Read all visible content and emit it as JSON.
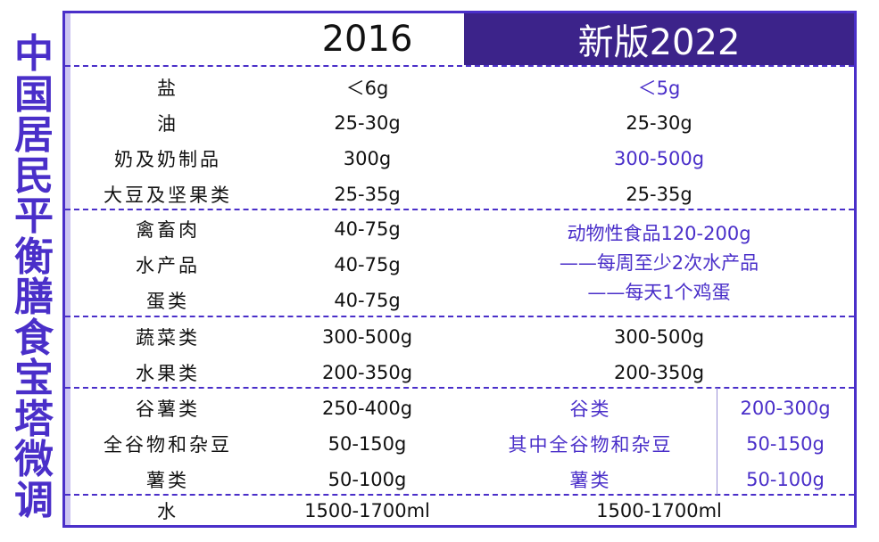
{
  "side_title": [
    "中",
    "国",
    "居",
    "民",
    "平",
    "衡",
    "膳",
    "食",
    "宝",
    "塔",
    "微",
    "调"
  ],
  "header": {
    "col_2016": "2016",
    "col_2022": "新版2022"
  },
  "rows": [
    {
      "food": "盐",
      "v2016": "＜6g",
      "v2022": "＜5g"
    },
    {
      "food": "油",
      "v2016": "25-30g",
      "v2022": "25-30g"
    },
    {
      "food": "奶及奶制品",
      "v2016": "300g",
      "v2022": "300-500g"
    },
    {
      "food": "大豆及坚果类",
      "v2016": "25-35g",
      "v2022": "25-35g"
    },
    {
      "food": "禽畜肉",
      "v2016": "40-75g"
    },
    {
      "food": "水产品",
      "v2016": "40-75g"
    },
    {
      "food": "蛋类",
      "v2016": "40-75g"
    },
    {
      "food": "蔬菜类",
      "v2016": "300-500g",
      "v2022": "300-500g"
    },
    {
      "food": "水果类",
      "v2016": "200-350g",
      "v2022": "200-350g"
    },
    {
      "food": "谷薯类",
      "v2016": "250-400g",
      "v2022_name": "谷类",
      "v2022": "200-300g"
    },
    {
      "food": "全谷物和杂豆",
      "v2016": "50-150g",
      "v2022_name": "其中全谷物和杂豆",
      "v2022": "50-150g"
    },
    {
      "food": "薯类",
      "v2016": "50-100g",
      "v2022_name": "薯类",
      "v2022": "50-100g"
    },
    {
      "food": "水",
      "v2016": "1500-1700ml",
      "v2022": "1500-1700ml"
    }
  ],
  "protein_2022": [
    "动物性食品120-200g",
    "——每周至少2次水产品",
    "——每天1个鸡蛋"
  ],
  "colors": {
    "accent": "#4a2fc9",
    "header_bg": "#3c238a",
    "band": "#e3e0f6"
  }
}
